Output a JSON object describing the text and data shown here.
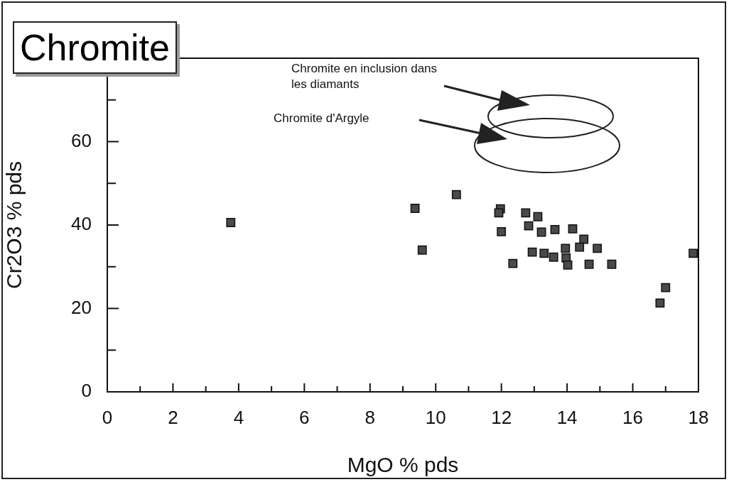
{
  "chart_data": {
    "type": "scatter",
    "title": "Chromite",
    "xlabel": "MgO % pds",
    "ylabel": "Cr2O3 % pds",
    "annotations": [
      "Chromite en inclusion dans\nles diamants",
      "Chromite d'Argyle"
    ],
    "xlim": [
      0,
      18
    ],
    "ylim": [
      0,
      80
    ],
    "xticks": [
      0,
      {
        "value": 1,
        "label": null
      },
      2,
      {
        "value": 3,
        "label": null
      },
      4,
      {
        "value": 5,
        "label": null
      },
      6,
      {
        "value": 7,
        "label": null
      },
      8,
      {
        "value": 9,
        "label": null
      },
      10,
      {
        "value": 11,
        "label": null
      },
      12,
      {
        "value": 13,
        "label": null
      },
      14,
      {
        "value": 15,
        "label": null
      },
      16,
      {
        "value": 17,
        "label": null
      },
      18
    ],
    "yticks": [
      0,
      {
        "value": 10,
        "label": null
      },
      20,
      {
        "value": 30,
        "label": null
      },
      40,
      {
        "value": 50,
        "label": null
      },
      60,
      {
        "value": 70,
        "label": null
      }
    ],
    "marker": "square",
    "series": [
      {
        "color": "#4a4a4a",
        "x": [
          3.76,
          9.37,
          9.59,
          10.63,
          11.97,
          11.92,
          12.0,
          12.35,
          12.74,
          13.11,
          12.83,
          13.22,
          13.63,
          14.17,
          14.51,
          14.92,
          14.38,
          12.94,
          13.3,
          13.59,
          13.97,
          14.02,
          14.67,
          15.36,
          13.95,
          17.84,
          17.0,
          16.83
        ],
        "values": [
          40.6,
          44.0,
          34.0,
          47.3,
          43.9,
          42.9,
          38.4,
          30.8,
          42.9,
          42.0,
          39.8,
          38.3,
          38.9,
          39.1,
          36.6,
          34.4,
          34.7,
          33.5,
          33.2,
          32.3,
          32.1,
          30.4,
          30.6,
          30.6,
          34.4,
          33.2,
          25.0,
          21.3
        ]
      }
    ]
  }
}
